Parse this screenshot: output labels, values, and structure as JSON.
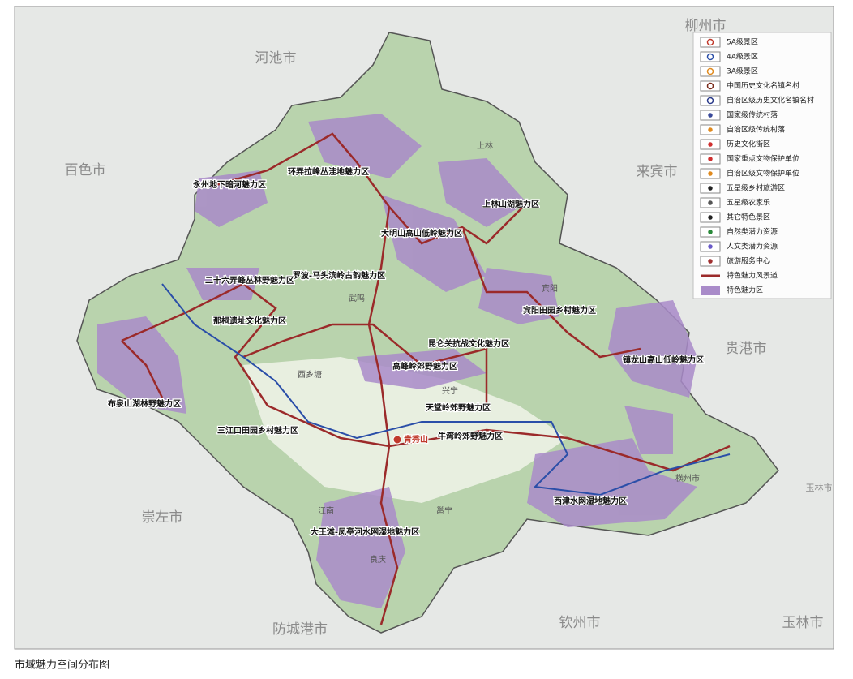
{
  "caption": "市域魅力空间分布图",
  "legend": [
    "5A级景区",
    "4A级景区",
    "3A级景区",
    "中国历史文化名镇名村",
    "自治区级历史文化名镇名村",
    "国家级传统村落",
    "自治区级传统村落",
    "历史文化街区",
    "国家重点文物保护单位",
    "自治区级文物保护单位",
    "五星级乡村旅游区",
    "五星级农家乐",
    "其它特色景区",
    "自然类潜力资源",
    "人文类潜力资源",
    "旅游服务中心",
    "特色魅力风景道",
    "特色魅力区"
  ],
  "neighbors": [
    "柳州市",
    "河池市",
    "百色市",
    "来宾市",
    "贵港市",
    "崇左市",
    "防城港市",
    "钦州市",
    "玉林市",
    "玉林市"
  ],
  "districts": [
    "上林",
    "武鸣",
    "宾阳",
    "西乡塘",
    "兴宁",
    "横州市",
    "江南",
    "良庆",
    "邕宁"
  ],
  "zones": [
    "环弄拉峰丛洼地魅力区",
    "永州地下暗河魅力区",
    "上林山湖魅力区",
    "大明山高山低岭魅力区",
    "罗波-马头滨岭古韵魅力区",
    "二十六弄峰丛林野魅力区",
    "那桐遗址文化魅力区",
    "宾阳田园乡村魅力区",
    "昆仑关抗战文化魅力区",
    "镇龙山高山低岭魅力区",
    "高峰岭郊野魅力区",
    "布泉山湖林野魅力区",
    "天堂岭郊野魅力区",
    "三江口田园乡村魅力区",
    "牛湾岭郊野魅力区",
    "西津水网湿地魅力区",
    "大王滩-凤亭河水网湿地魅力区"
  ],
  "landmark": "青秀山"
}
